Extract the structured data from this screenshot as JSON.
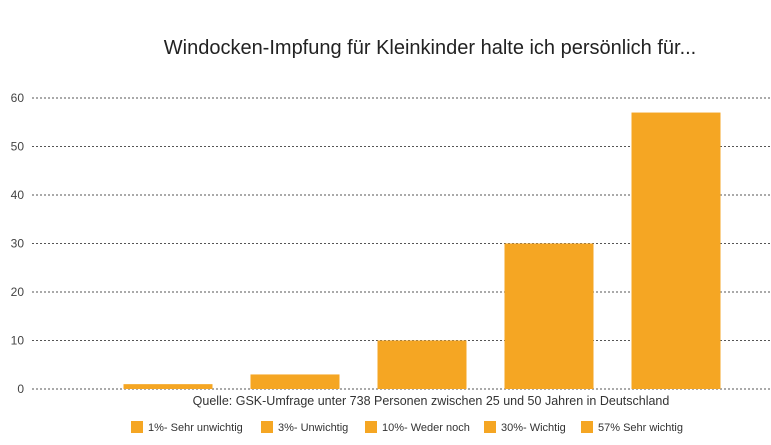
{
  "chart_data": {
    "type": "bar",
    "title": "Windocken-Impfung für Kleinkinder halte ich persönlich für...",
    "xlabel": "Quelle: GSK-Umfrage unter 738 Personen zwischen 25 und 50 Jahren in Deutschland",
    "ylabel": "",
    "ylim": [
      0,
      60
    ],
    "yticks": [
      0,
      10,
      20,
      30,
      40,
      50,
      60
    ],
    "grid": true,
    "legend_position": "bottom",
    "bar_color": "#F5A623",
    "categories": [
      "1%- Sehr unwichtig",
      "3%- Unwichtig",
      "10%- Weder noch",
      "30%- Wichtig",
      "57% Sehr wichtig"
    ],
    "values": [
      1,
      3,
      10,
      30,
      57
    ]
  }
}
